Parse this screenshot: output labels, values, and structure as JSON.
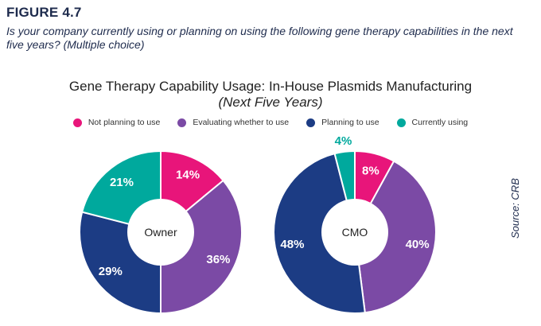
{
  "figure": {
    "label": "FIGURE 4.7",
    "question": "Is your company currently using or planning on using the following gene therapy capabilities in the next five years? (Multiple choice)",
    "source": "Source: CRB"
  },
  "chart_data": {
    "type": "pie",
    "title": "Gene Therapy Capability Usage: In-House Plasmids Manufacturing",
    "subtitle": "(Next Five Years)",
    "legend": [
      {
        "label": "Not planning to use",
        "color": "#e8157a"
      },
      {
        "label": "Evaluating whether to use",
        "color": "#7b4aa5"
      },
      {
        "label": "Planning to use",
        "color": "#1c3c84"
      },
      {
        "label": "Currently using",
        "color": "#00a99d"
      }
    ],
    "charts": [
      {
        "name": "Owner",
        "slices": [
          {
            "category": "Not planning to use",
            "value": 14,
            "label": "14%"
          },
          {
            "category": "Evaluating whether to use",
            "value": 36,
            "label": "36%"
          },
          {
            "category": "Planning to use",
            "value": 29,
            "label": "29%"
          },
          {
            "category": "Currently using",
            "value": 21,
            "label": "21%"
          }
        ]
      },
      {
        "name": "CMO",
        "slices": [
          {
            "category": "Not planning to use",
            "value": 8,
            "label": "8%"
          },
          {
            "category": "Evaluating whether to use",
            "value": 40,
            "label": "40%"
          },
          {
            "category": "Planning to use",
            "value": 48,
            "label": "48%"
          },
          {
            "category": "Currently using",
            "value": 4,
            "label": "4%"
          }
        ]
      }
    ]
  }
}
